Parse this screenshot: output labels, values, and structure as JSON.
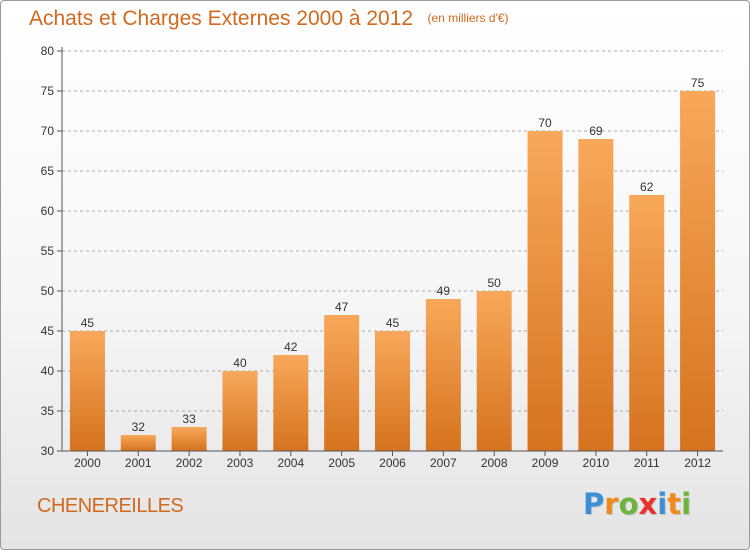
{
  "title": "Achats et Charges Externes 2000 à 2012",
  "unit": "(en milliers d'€)",
  "commune": "CHENEREILLES",
  "logo": {
    "text": "Proxiti",
    "letters": [
      {
        "ch": "P",
        "color": "#3a8fd6"
      },
      {
        "ch": "r",
        "color": "#f08a1c"
      },
      {
        "ch": "o",
        "color": "#6cb33f"
      },
      {
        "ch": "x",
        "color": "#e8322f"
      },
      {
        "ch": "i",
        "color": "#3a8fd6"
      },
      {
        "ch": "t",
        "color": "#f08a1c"
      },
      {
        "ch": "i",
        "color": "#6cb33f"
      }
    ]
  },
  "colors": {
    "title": "#d2691e",
    "bar_top": "#f8a85a",
    "bar_bottom": "#d5731f",
    "grid": "#aaaaaa"
  },
  "chart_data": {
    "type": "bar",
    "categories": [
      "2000",
      "2001",
      "2002",
      "2003",
      "2004",
      "2005",
      "2006",
      "2007",
      "2008",
      "2009",
      "2010",
      "2011",
      "2012"
    ],
    "values": [
      45,
      32,
      33,
      40,
      42,
      47,
      45,
      49,
      50,
      70,
      69,
      62,
      75
    ],
    "ylim": [
      30,
      80
    ],
    "yticks": [
      30,
      35,
      40,
      45,
      50,
      55,
      60,
      65,
      70,
      75,
      80
    ],
    "grid": "horizontal dashed",
    "legend": "none"
  }
}
